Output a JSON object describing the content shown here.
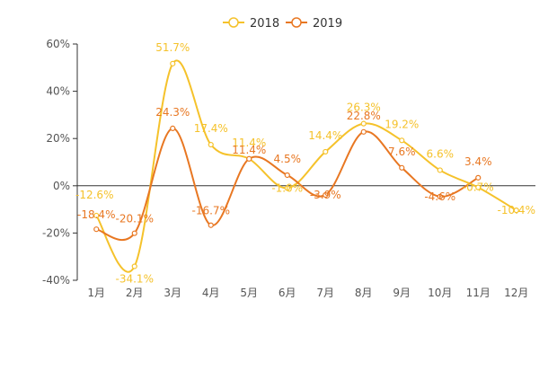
{
  "chart_data": {
    "type": "line",
    "categories": [
      "1月",
      "2月",
      "3月",
      "4月",
      "5月",
      "6月",
      "7月",
      "8月",
      "9月",
      "10月",
      "11月",
      "12月"
    ],
    "series": [
      {
        "name": "2018",
        "color": "#F5C22B",
        "values": [
          -12.6,
          -34.1,
          51.7,
          17.4,
          11.4,
          -1.0,
          14.4,
          26.3,
          19.2,
          6.6,
          -0.7,
          -10.4
        ],
        "labels": [
          "-12.6%",
          "-34.1%",
          "51.7%",
          "17.4%",
          "11.4%",
          "-1.0%",
          "14.4%",
          "26.3%",
          "19.2%",
          "6.6%",
          "-0.7%",
          "-10.4%"
        ]
      },
      {
        "name": "2019",
        "color": "#E87722",
        "values": [
          -18.4,
          -20.1,
          24.3,
          -16.7,
          11.4,
          4.5,
          -3.9,
          22.8,
          7.6,
          -4.6,
          3.4,
          null
        ],
        "labels": [
          "-18.4%",
          "-20.1%",
          "24.3%",
          "-16.7%",
          "11.4%",
          "4.5%",
          "-3.9%",
          "22.8%",
          "7.6%",
          "-4.6%",
          "3.4%",
          null
        ]
      }
    ],
    "yticks": [
      -40,
      -20,
      0,
      20,
      40,
      60
    ],
    "ytick_labels": [
      "-40%",
      "-20%",
      "0%",
      "20%",
      "40%",
      "60%"
    ],
    "ylim": [
      -40,
      60
    ],
    "legend": "top-center",
    "grid": false
  }
}
